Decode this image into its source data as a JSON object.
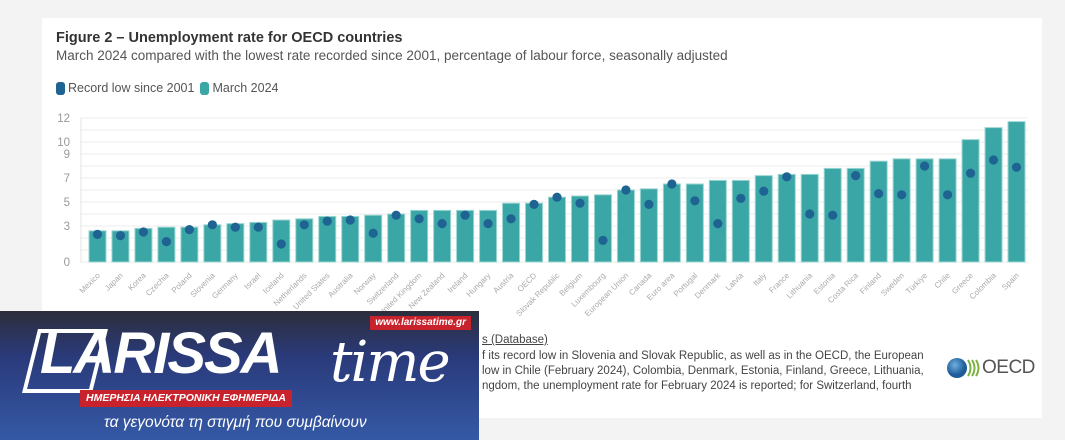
{
  "chart_data": {
    "type": "bar",
    "title": "Figure 2 – Unemployment rate for OECD countries",
    "subtitle": "March 2024 compared with the lowest rate recorded since 2001, percentage of labour force, seasonally adjusted",
    "xlabel": "",
    "ylabel": "",
    "ylim": [
      0,
      12
    ],
    "yticks": [
      0,
      3,
      5,
      7,
      9,
      10,
      12
    ],
    "grid": true,
    "legend_position": "top-left",
    "categories": [
      "Mexico",
      "Japan",
      "Korea",
      "Czechia",
      "Poland",
      "Slovenia",
      "Germany",
      "Israel",
      "Iceland",
      "Netherlands",
      "United States",
      "Australia",
      "Norway",
      "Switzerland",
      "United Kingdom",
      "New Zealand",
      "Ireland",
      "Hungary",
      "Austria",
      "OECD",
      "Slovak Republic",
      "Belgium",
      "Luxembourg",
      "European Union",
      "Canada",
      "Euro area",
      "Portugal",
      "Denmark",
      "Latvia",
      "Italy",
      "France",
      "Lithuania",
      "Estonia",
      "Costa Rica",
      "Finland",
      "Sweden",
      "Türkiye",
      "Chile",
      "Greece",
      "Colombia",
      "Spain"
    ],
    "series": [
      {
        "name": "Record low since 2001",
        "kind": "dot",
        "color": "#1f6393",
        "values": [
          2.3,
          2.2,
          2.5,
          1.7,
          2.7,
          3.1,
          2.9,
          2.9,
          1.5,
          3.1,
          3.4,
          3.5,
          2.4,
          3.9,
          3.6,
          3.2,
          3.9,
          3.2,
          3.6,
          4.8,
          5.4,
          4.9,
          1.8,
          6.0,
          4.8,
          6.5,
          5.1,
          3.2,
          5.3,
          5.9,
          7.1,
          4.0,
          3.9,
          7.2,
          5.7,
          5.6,
          8.0,
          5.6,
          7.4,
          8.5,
          7.9
        ]
      },
      {
        "name": "March 2024",
        "kind": "bar",
        "color": "#3aa6a6",
        "values": [
          2.6,
          2.6,
          2.8,
          2.9,
          2.9,
          3.1,
          3.2,
          3.3,
          3.5,
          3.6,
          3.8,
          3.8,
          3.9,
          4.0,
          4.3,
          4.3,
          4.3,
          4.3,
          4.9,
          4.9,
          5.4,
          5.5,
          5.6,
          6.0,
          6.1,
          6.5,
          6.5,
          6.8,
          6.8,
          7.2,
          7.3,
          7.3,
          7.8,
          7.8,
          8.4,
          8.6,
          8.6,
          8.6,
          10.2,
          11.2,
          11.7
        ]
      }
    ]
  },
  "footer": {
    "source_fragment": "s (Database)",
    "note_lines": [
      "f its record low in Slovenia and Slovak Republic, as well as in the OECD, the European",
      "low in Chile (February 2024), Colombia, Denmark, Estonia, Finland, Greece, Lithuania,",
      "ngdom, the unemployment rate for February 2024 is reported; for Switzerland, fourth"
    ],
    "oecd_logo": "OECD"
  },
  "banner": {
    "brand_main": "LARISSA",
    "brand_time": "time",
    "url": "www.larissatime.gr",
    "tagline": "ΗΜΕΡΗΣΙΑ ΗΛΕΚΤΡΟΝΙΚΗ ΕΦΗΜΕΡΙΔΑ",
    "slogan": "τα γεγονότα τη στιγμή που συμβαίνουν"
  }
}
